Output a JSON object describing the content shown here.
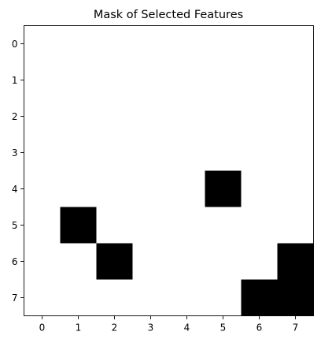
{
  "chart_data": {
    "type": "heatmap",
    "title": "Mask of Selected Features",
    "xlabel": "",
    "ylabel": "",
    "x_ticks": [
      "0",
      "1",
      "2",
      "3",
      "4",
      "5",
      "6",
      "7"
    ],
    "y_ticks": [
      "0",
      "1",
      "2",
      "3",
      "4",
      "5",
      "6",
      "7"
    ],
    "xlim": [
      -0.5,
      7.5
    ],
    "ylim": [
      7.5,
      -0.5
    ],
    "y_inverted": true,
    "colormap": "gray",
    "grid": false,
    "legend": "none",
    "colors": {
      "selected": "#000000",
      "unselected": "#ffffff"
    },
    "cells": [
      [
        1,
        1,
        1,
        1,
        1,
        1,
        1,
        1
      ],
      [
        1,
        1,
        1,
        1,
        1,
        1,
        1,
        1
      ],
      [
        1,
        1,
        1,
        1,
        1,
        1,
        1,
        1
      ],
      [
        1,
        1,
        1,
        1,
        1,
        1,
        1,
        1
      ],
      [
        1,
        1,
        1,
        1,
        1,
        0,
        1,
        1
      ],
      [
        1,
        0,
        1,
        1,
        1,
        1,
        1,
        1
      ],
      [
        1,
        1,
        0,
        1,
        1,
        1,
        1,
        0
      ],
      [
        1,
        1,
        1,
        1,
        1,
        1,
        0,
        0
      ]
    ]
  }
}
